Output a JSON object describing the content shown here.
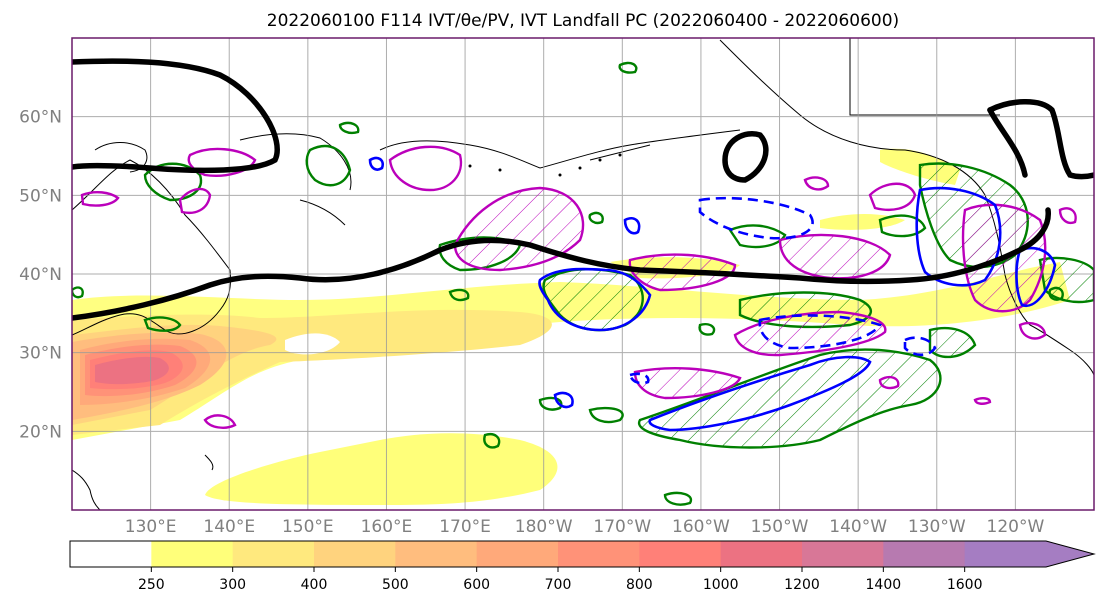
{
  "title": "2022060100 F114 IVT/θe/PV, IVT Landfall PC (2022060400 - 2022060600)",
  "map": {
    "lat_labels": [
      "60°N",
      "50°N",
      "40°N",
      "30°N",
      "20°N"
    ],
    "lon_labels": [
      "130°E",
      "140°E",
      "150°E",
      "160°E",
      "170°E",
      "180°W",
      "170°W",
      "160°W",
      "150°W",
      "140°W",
      "130°W",
      "120°W"
    ],
    "lat_ticks": [
      60,
      50,
      40,
      30,
      20
    ],
    "lon_ticks": [
      130,
      140,
      150,
      160,
      170,
      180,
      190,
      200,
      210,
      220,
      230,
      240
    ],
    "extent": {
      "lon_min": 120,
      "lon_max": 250,
      "lat_min": 10,
      "lat_max": 70
    }
  },
  "colorbar": {
    "levels": [
      "250",
      "300",
      "400",
      "500",
      "600",
      "700",
      "800",
      "1000",
      "1200",
      "1400",
      "1600"
    ],
    "colors": [
      "#ffffff",
      "#ffff7a",
      "#ffe97e",
      "#ffd37e",
      "#ffbd7e",
      "#ffa97a",
      "#ff9278",
      "#ff8078",
      "#ec7282",
      "#d87797",
      "#b77ab0",
      "#a57dc2",
      "#a57dc2"
    ]
  },
  "colors": {
    "pv_contour": "#000000",
    "theta_e_pos": "#008000",
    "theta_e_neg": "#bb00bb",
    "ivt_pc": "#0000ff",
    "coast": "#000000",
    "grid": "#999999"
  }
}
